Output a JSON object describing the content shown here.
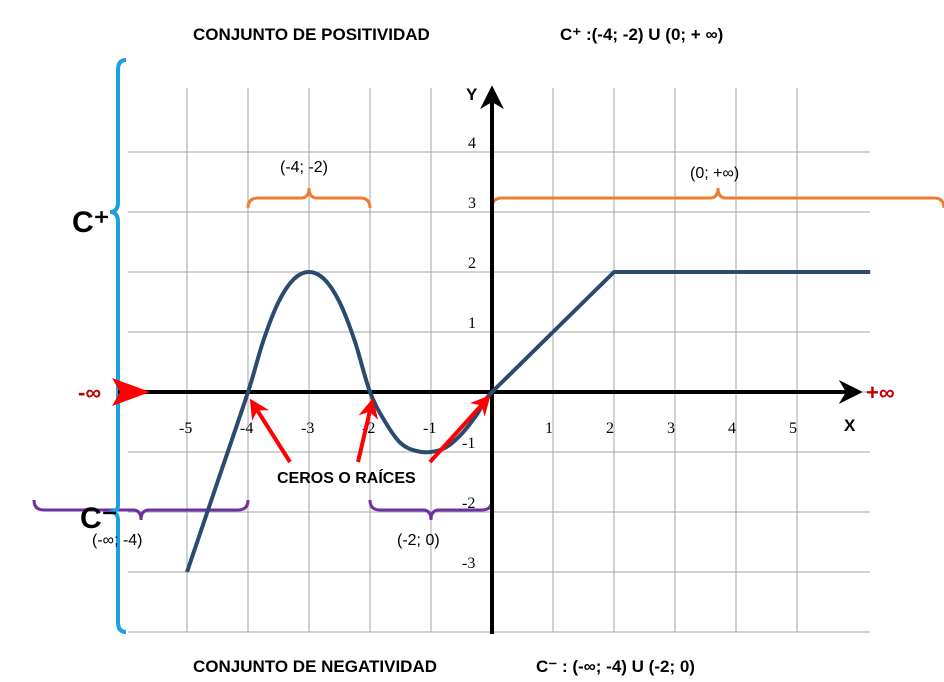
{
  "chart_data": {
    "type": "line",
    "title_top": "CONJUNTO DE POSITIVIDAD",
    "title_top_set": "C⁺ :(-4; -2) U  (0; + ∞)",
    "title_bottom": "CONJUNTO DE NEGATIVIDAD",
    "title_bottom_set": "C⁻ :  (-∞; -4) U  (-2; 0)",
    "xlabel": "X",
    "ylabel": "Y",
    "xlim": [
      -6,
      6
    ],
    "ylim": [
      -4,
      5
    ],
    "grid": true,
    "x_ticks": [
      "-5",
      "-4",
      "-3",
      "-2",
      "-1",
      "1",
      "2",
      "3",
      "4",
      "5"
    ],
    "y_ticks": [
      "4",
      "3",
      "2",
      "1",
      "-1",
      "-2",
      "-3"
    ],
    "series": [
      {
        "color": "#2b4a6f",
        "points": [
          [
            -5,
            -3
          ],
          [
            -4.5,
            -1.5
          ],
          [
            -4,
            0
          ],
          [
            -3.75,
            0.85
          ],
          [
            -3.5,
            1.5
          ],
          [
            -3.25,
            1.88
          ],
          [
            -3,
            2
          ],
          [
            -2.75,
            1.88
          ],
          [
            -2.5,
            1.5
          ],
          [
            -2.25,
            0.85
          ],
          [
            -2,
            0
          ],
          [
            -1.75,
            -0.5
          ],
          [
            -1.5,
            -0.85
          ],
          [
            -1.25,
            -0.98
          ],
          [
            -1,
            -1
          ],
          [
            -0.75,
            -0.92
          ],
          [
            -0.5,
            -0.7
          ],
          [
            -0.25,
            -0.38
          ],
          [
            0,
            0
          ],
          [
            1,
            1
          ],
          [
            2,
            2
          ],
          [
            6.2,
            2
          ]
        ]
      }
    ],
    "positive_intervals": [
      "(-4; -2)",
      "(0; +∞)"
    ],
    "negative_intervals": [
      "(-∞; -4)",
      "(-2; 0)"
    ],
    "positive_label": "C⁺",
    "negative_label": "C⁻",
    "minus_infinity": "-∞",
    "plus_infinity": "+∞",
    "roots_label": "CEROS O RAÍCES",
    "roots": [
      -4,
      -2,
      0
    ],
    "colors": {
      "curve": "#2b4a6f",
      "positive_brace": "#ed7d31",
      "negative_brace": "#7030a0",
      "left_brace": "#1ba1e2",
      "arrows": "#ff0000",
      "infinity_left": "#c00000",
      "grid": "#a6a6a6"
    }
  }
}
